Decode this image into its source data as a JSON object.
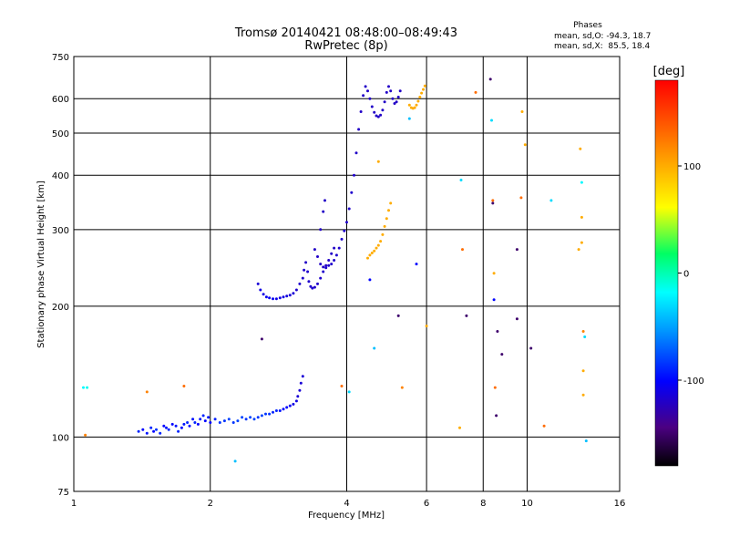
{
  "chart_data": {
    "type": "scatter",
    "title": "Tromsø 20140421 08:48:00–08:49:43",
    "subtitle": "RwPretec (8p)",
    "xlabel": "Frequency [MHz]",
    "ylabel": "Stationary phase Virtual Height [km]",
    "x_scale": "log",
    "y_scale": "log",
    "xlim": [
      1,
      16
    ],
    "ylim": [
      75,
      750
    ],
    "x_ticks": [
      1,
      2,
      4,
      6,
      8,
      10,
      16
    ],
    "y_ticks": [
      75,
      100,
      200,
      300,
      400,
      500,
      600,
      750
    ],
    "grid": true,
    "stats": {
      "heading": "Phases",
      "line_o": "mean, sd,O: -94.3, 18.7",
      "line_x": "mean, sd,X:  85.5, 18.4"
    },
    "colorbar": {
      "label": "[deg]",
      "range": [
        -180,
        180
      ],
      "ticks": [
        100,
        0,
        -100
      ]
    },
    "series": [
      {
        "points": [
          [
            1.39,
            103,
            -90
          ],
          [
            1.42,
            104,
            -100
          ],
          [
            1.45,
            102,
            -95
          ],
          [
            1.48,
            105,
            -90
          ],
          [
            1.5,
            103,
            -100
          ],
          [
            1.52,
            104,
            -85
          ],
          [
            1.55,
            102,
            -90
          ],
          [
            1.58,
            106,
            -100
          ],
          [
            1.6,
            105,
            -95
          ],
          [
            1.62,
            104,
            -90
          ],
          [
            1.65,
            107,
            -100
          ],
          [
            1.68,
            106,
            -95
          ],
          [
            1.7,
            103,
            -90
          ],
          [
            1.73,
            105,
            -100
          ],
          [
            1.75,
            107,
            -95
          ],
          [
            1.78,
            108,
            -90
          ],
          [
            1.8,
            106,
            -100
          ],
          [
            1.83,
            110,
            -95
          ],
          [
            1.85,
            108,
            -90
          ],
          [
            1.88,
            107,
            -100
          ],
          [
            1.9,
            110,
            -95
          ],
          [
            1.93,
            112,
            -90
          ],
          [
            1.95,
            109,
            -100
          ],
          [
            1.98,
            111,
            -95
          ],
          [
            2.0,
            108,
            -100
          ],
          [
            2.05,
            110,
            -90
          ],
          [
            2.1,
            108,
            -85
          ],
          [
            2.15,
            109,
            -85
          ],
          [
            2.2,
            110,
            -80
          ],
          [
            2.25,
            108,
            -85
          ],
          [
            2.3,
            109,
            -80
          ],
          [
            2.35,
            111,
            -80
          ],
          [
            2.4,
            110,
            -85
          ],
          [
            2.45,
            111,
            -80
          ],
          [
            2.5,
            110,
            -80
          ],
          [
            2.55,
            111,
            -85
          ],
          [
            2.6,
            112,
            -80
          ],
          [
            2.65,
            113,
            -85
          ],
          [
            2.7,
            113,
            -85
          ],
          [
            2.75,
            114,
            -90
          ],
          [
            2.8,
            115,
            -90
          ],
          [
            2.85,
            115,
            -95
          ],
          [
            2.9,
            116,
            -100
          ],
          [
            2.95,
            117,
            -100
          ],
          [
            3.0,
            118,
            -105
          ],
          [
            3.05,
            119,
            -110
          ],
          [
            3.1,
            121,
            -110
          ],
          [
            3.12,
            124,
            -115
          ],
          [
            3.15,
            128,
            -115
          ],
          [
            3.17,
            133,
            -115
          ],
          [
            3.2,
            138,
            -115
          ]
        ]
      },
      {
        "points": [
          [
            2.55,
            225,
            -115
          ],
          [
            2.58,
            218,
            -110
          ],
          [
            2.62,
            213,
            -110
          ],
          [
            2.66,
            210,
            -105
          ],
          [
            2.7,
            209,
            -105
          ],
          [
            2.75,
            208,
            -105
          ],
          [
            2.8,
            208,
            -108
          ],
          [
            2.85,
            209,
            -110
          ],
          [
            2.9,
            210,
            -110
          ],
          [
            2.95,
            211,
            -112
          ],
          [
            3.0,
            212,
            -115
          ],
          [
            3.05,
            214,
            -115
          ],
          [
            3.1,
            218,
            -118
          ],
          [
            3.15,
            225,
            -118
          ]
        ]
      },
      {
        "points": [
          [
            3.2,
            232,
            -118
          ],
          [
            3.22,
            242,
            -118
          ],
          [
            3.25,
            252,
            -120
          ],
          [
            3.28,
            240,
            -118
          ],
          [
            3.3,
            228,
            -118
          ],
          [
            3.33,
            222,
            -118
          ],
          [
            3.36,
            220,
            -118
          ],
          [
            3.4,
            221,
            -118
          ],
          [
            3.45,
            225,
            -118
          ],
          [
            3.5,
            232,
            -118
          ],
          [
            3.55,
            240,
            -118
          ],
          [
            3.6,
            245,
            -118
          ],
          [
            3.65,
            248,
            -118
          ],
          [
            3.7,
            250,
            -118
          ],
          [
            3.75,
            255,
            -118
          ],
          [
            3.8,
            262,
            -118
          ],
          [
            3.85,
            272,
            -118
          ],
          [
            3.9,
            285,
            -118
          ],
          [
            3.95,
            298,
            -118
          ],
          [
            4.0,
            312,
            -118
          ],
          [
            4.05,
            335,
            -118
          ],
          [
            4.1,
            365,
            -118
          ],
          [
            4.15,
            400,
            -118
          ],
          [
            4.2,
            450,
            -120
          ],
          [
            4.25,
            510,
            -120
          ],
          [
            4.3,
            560,
            -120
          ],
          [
            4.35,
            610,
            -120
          ],
          [
            4.4,
            640,
            -120
          ],
          [
            4.45,
            625,
            -120
          ],
          [
            4.5,
            600,
            -120
          ],
          [
            4.55,
            575,
            -120
          ],
          [
            4.6,
            558,
            -120
          ],
          [
            4.65,
            548,
            -120
          ],
          [
            4.7,
            545,
            -120
          ],
          [
            4.75,
            550,
            -120
          ],
          [
            4.8,
            565,
            -120
          ],
          [
            4.85,
            590,
            -120
          ],
          [
            4.9,
            620,
            -120
          ],
          [
            4.95,
            640,
            -120
          ],
          [
            5.0,
            625,
            -120
          ],
          [
            5.05,
            600,
            -120
          ],
          [
            5.1,
            585,
            -120
          ],
          [
            5.15,
            590,
            -120
          ],
          [
            5.2,
            605,
            -120
          ],
          [
            5.25,
            625,
            -120
          ]
        ]
      },
      {
        "points": [
          [
            3.4,
            270,
            -120
          ],
          [
            3.45,
            260,
            -120
          ],
          [
            3.5,
            250,
            -120
          ],
          [
            3.55,
            246,
            -120
          ],
          [
            3.6,
            248,
            -120
          ],
          [
            3.65,
            255,
            -120
          ],
          [
            3.7,
            264,
            -120
          ],
          [
            3.75,
            272,
            -120
          ],
          [
            3.5,
            300,
            -120
          ],
          [
            3.55,
            330,
            -120
          ],
          [
            3.58,
            350,
            -120
          ]
        ]
      },
      {
        "points": [
          [
            4.45,
            258,
            100
          ],
          [
            4.5,
            262,
            100
          ],
          [
            4.55,
            265,
            100
          ],
          [
            4.6,
            268,
            100
          ],
          [
            4.65,
            272,
            100
          ],
          [
            4.7,
            276,
            100
          ],
          [
            4.75,
            282,
            100
          ],
          [
            4.8,
            292,
            100
          ],
          [
            4.85,
            305,
            100
          ],
          [
            4.9,
            318,
            100
          ],
          [
            4.95,
            332,
            100
          ],
          [
            5.0,
            345,
            100
          ]
        ]
      },
      {
        "points": [
          [
            5.5,
            580,
            100
          ],
          [
            5.55,
            572,
            100
          ],
          [
            5.6,
            570,
            100
          ],
          [
            5.65,
            572,
            100
          ],
          [
            5.7,
            580,
            100
          ],
          [
            5.75,
            592,
            100
          ],
          [
            5.8,
            605,
            100
          ],
          [
            5.85,
            618,
            100
          ],
          [
            5.9,
            630,
            100
          ],
          [
            5.95,
            642,
            100
          ]
        ]
      },
      {
        "points": [
          [
            1.05,
            130,
            -20
          ],
          [
            1.07,
            130,
            -15
          ],
          [
            1.06,
            101,
            120
          ],
          [
            1.45,
            127,
            120
          ],
          [
            1.75,
            131,
            130
          ],
          [
            2.27,
            88,
            -40
          ],
          [
            2.6,
            168,
            -150
          ],
          [
            3.9,
            131,
            130
          ],
          [
            4.05,
            127,
            -30
          ],
          [
            4.5,
            230,
            -100
          ],
          [
            4.6,
            160,
            -40
          ],
          [
            4.7,
            430,
            100
          ],
          [
            5.2,
            190,
            -150
          ],
          [
            5.3,
            130,
            120
          ],
          [
            5.5,
            540,
            -40
          ],
          [
            5.7,
            250,
            -100
          ],
          [
            6.0,
            180,
            100
          ],
          [
            7.1,
            105,
            100
          ],
          [
            7.15,
            390,
            -30
          ],
          [
            7.2,
            270,
            130
          ],
          [
            7.35,
            190,
            -150
          ],
          [
            7.7,
            620,
            130
          ],
          [
            8.3,
            665,
            -150
          ],
          [
            8.35,
            535,
            -30
          ],
          [
            8.4,
            350,
            130
          ],
          [
            8.4,
            345,
            -150
          ],
          [
            8.45,
            238,
            100
          ],
          [
            8.45,
            207,
            -100
          ],
          [
            8.5,
            130,
            130
          ],
          [
            8.55,
            112,
            -150
          ],
          [
            8.6,
            175,
            -150
          ],
          [
            8.8,
            155,
            -150
          ],
          [
            9.5,
            270,
            -150
          ],
          [
            9.5,
            187,
            -150
          ],
          [
            9.7,
            355,
            130
          ],
          [
            9.75,
            560,
            100
          ],
          [
            9.9,
            470,
            100
          ],
          [
            10.2,
            160,
            -150
          ],
          [
            10.9,
            106,
            130
          ],
          [
            11.3,
            350,
            -30
          ],
          [
            13.0,
            270,
            100
          ],
          [
            13.1,
            460,
            100
          ],
          [
            13.2,
            385,
            -20
          ],
          [
            13.2,
            320,
            100
          ],
          [
            13.2,
            280,
            100
          ],
          [
            13.3,
            175,
            120
          ],
          [
            13.3,
            142,
            100
          ],
          [
            13.3,
            125,
            100
          ],
          [
            13.4,
            170,
            -30
          ],
          [
            13.5,
            98,
            -40
          ]
        ]
      }
    ]
  }
}
